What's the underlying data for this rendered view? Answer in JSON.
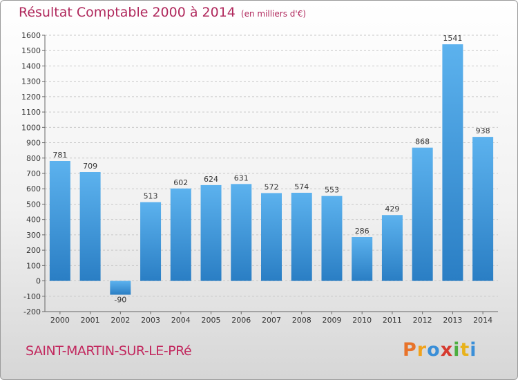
{
  "title": "Résultat Comptable 2000 à 2014",
  "subtitle": "(en milliers d'€)",
  "place": "SAINT-MARTIN-SUR-LE-PRé",
  "logo": {
    "text": "Proxiti",
    "colors": [
      "#e8732a",
      "#f1a21c",
      "#3a8fd8",
      "#d63a2f",
      "#4cae3f",
      "#e8b21b",
      "#3a8fd8"
    ]
  },
  "colors": {
    "title": "#b0285c",
    "bar_top": "#5cb2ee",
    "bar_bottom": "#2a7ec4"
  },
  "chart_data": {
    "type": "bar",
    "categories": [
      "2000",
      "2001",
      "2002",
      "2003",
      "2004",
      "2005",
      "2006",
      "2007",
      "2008",
      "2009",
      "2010",
      "2011",
      "2012",
      "2013",
      "2014"
    ],
    "values": [
      781,
      709,
      -90,
      513,
      602,
      624,
      631,
      572,
      574,
      553,
      286,
      429,
      868,
      1541,
      938
    ],
    "ylim": [
      -200,
      1600
    ],
    "yticks": [
      -200,
      -100,
      0,
      100,
      200,
      300,
      400,
      500,
      600,
      700,
      800,
      900,
      1000,
      1100,
      1200,
      1300,
      1400,
      1500,
      1600
    ],
    "grid": true,
    "data_labels": true
  }
}
